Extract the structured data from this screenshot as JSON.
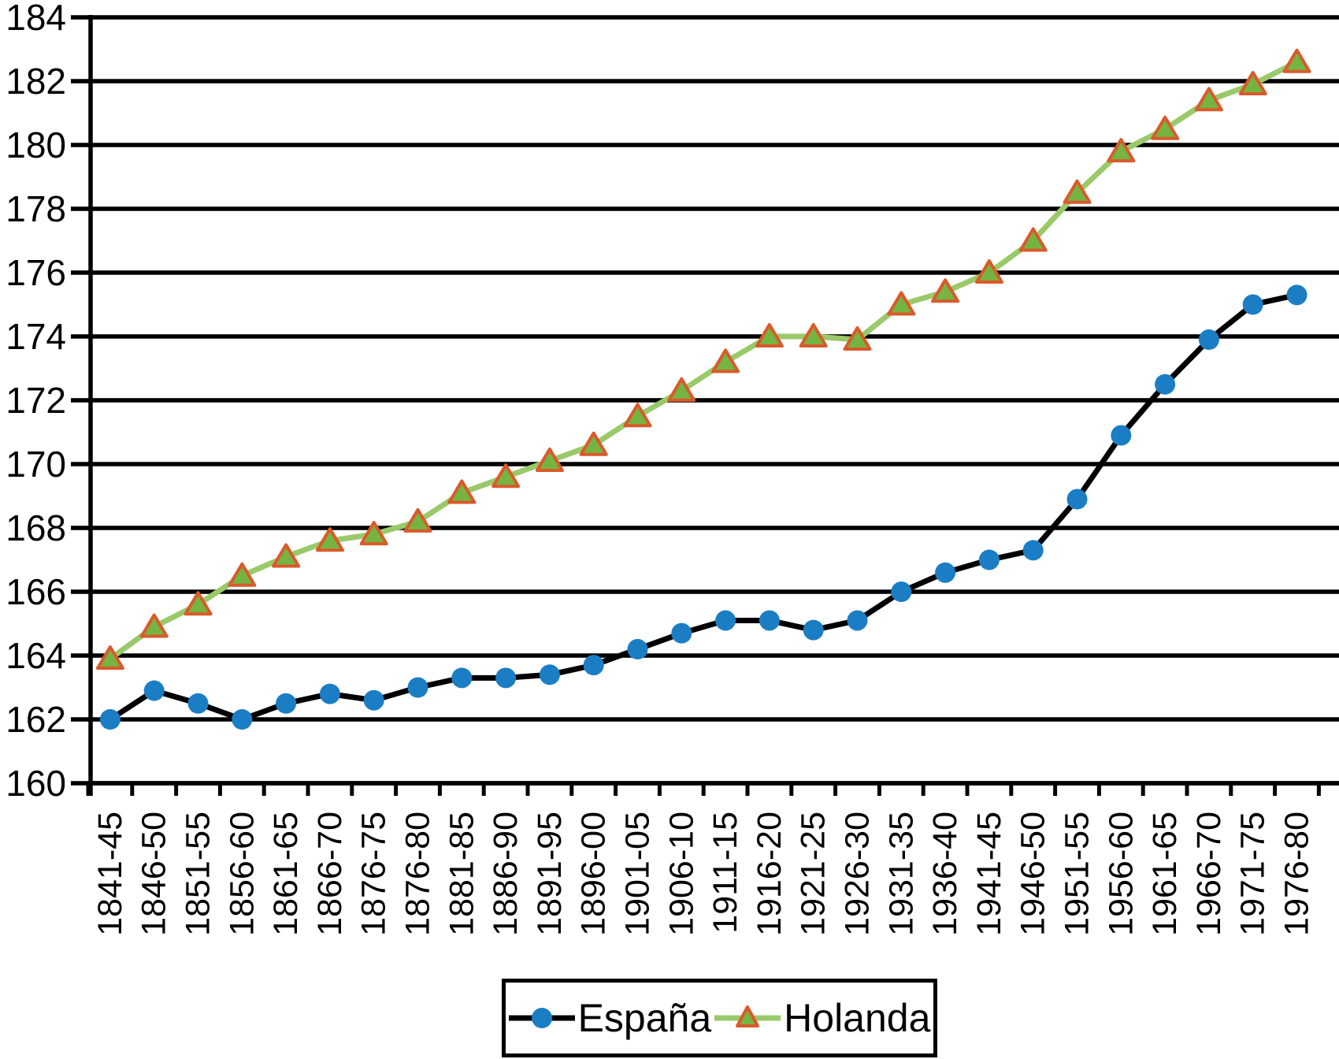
{
  "chart_data": {
    "type": "line",
    "title": "",
    "xlabel": "",
    "ylabel": "",
    "categories": [
      "1841-45",
      "1846-50",
      "1851-55",
      "1856-60",
      "1861-65",
      "1866-70",
      "1876-75",
      "1876-80",
      "1881-85",
      "1886-90",
      "1891-95",
      "1896-00",
      "1901-05",
      "1906-10",
      "1911-15",
      "1916-20",
      "1921-25",
      "1926-30",
      "1931-35",
      "1936-40",
      "1941-45",
      "1946-50",
      "1951-55",
      "1956-60",
      "1961-65",
      "1966-70",
      "1971-75",
      "1976-80"
    ],
    "series": [
      {
        "name": "España",
        "marker": "circle",
        "line_color": "#000000",
        "marker_color": "#1b7ec5",
        "values": [
          162.0,
          162.9,
          162.5,
          162.0,
          162.5,
          162.8,
          162.6,
          163.0,
          163.3,
          163.3,
          163.4,
          163.7,
          164.2,
          164.7,
          165.1,
          165.1,
          164.8,
          165.1,
          166.0,
          166.6,
          167.0,
          167.3,
          168.9,
          170.9,
          172.5,
          173.9,
          175.0,
          175.3
        ]
      },
      {
        "name": "Holanda",
        "marker": "triangle",
        "line_color": "#9ac96a",
        "marker_color": "#76b442",
        "marker_border": "#d95a2b",
        "values": [
          163.9,
          164.9,
          165.6,
          166.5,
          167.1,
          167.6,
          167.8,
          168.2,
          169.1,
          169.6,
          170.1,
          170.6,
          171.5,
          172.3,
          173.2,
          174.0,
          174.0,
          173.9,
          175.0,
          175.4,
          176.0,
          177.0,
          178.5,
          179.8,
          180.5,
          181.4,
          181.9,
          182.6
        ]
      }
    ],
    "ylim": [
      160,
      184
    ],
    "yticks": [
      160,
      162,
      164,
      166,
      168,
      170,
      172,
      174,
      176,
      178,
      180,
      182,
      184
    ],
    "grid": "horizontal",
    "axis_color": "#000000",
    "legend_position": "bottom-center"
  }
}
